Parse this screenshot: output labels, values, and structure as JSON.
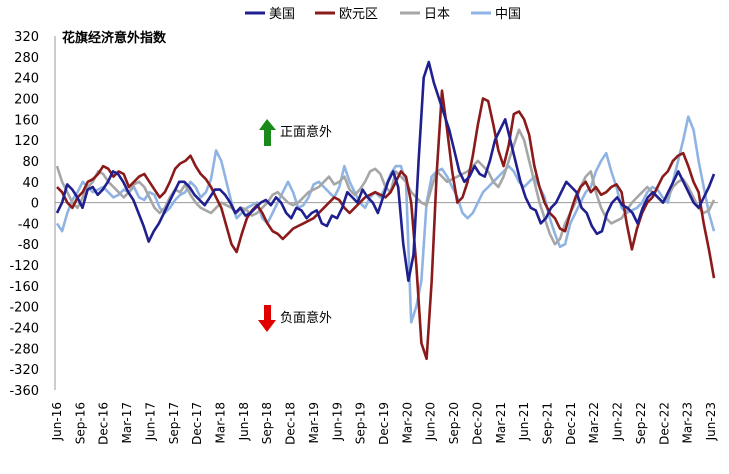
{
  "chart_data": {
    "type": "line",
    "title": "花旗经济意外指数",
    "ylim": [
      -360,
      320
    ],
    "yticks": [
      320,
      280,
      240,
      200,
      160,
      120,
      80,
      40,
      0,
      -40,
      -80,
      -120,
      -160,
      -200,
      -240,
      -280,
      -320,
      -360
    ],
    "x_tick_labels": [
      "Jun-16",
      "Sep-16",
      "Dec-16",
      "Mar-17",
      "Jun-17",
      "Sep-17",
      "Dec-17",
      "Mar-18",
      "Jun-18",
      "Sep-18",
      "Dec-18",
      "Mar-19",
      "Jun-19",
      "Sep-19",
      "Dec-19",
      "Mar-20",
      "Jun-20",
      "Sep-20",
      "Dec-20",
      "Mar-21",
      "Jun-21",
      "Sep-21",
      "Dec-21",
      "Mar-22",
      "Jun-22",
      "Sep-22",
      "Dec-22",
      "Mar-23",
      "Jun-23"
    ],
    "legend_position": "top",
    "annotations": [
      {
        "text": "正面意外",
        "arrow": "up",
        "color": "#1a8a1a",
        "y": 110
      },
      {
        "text": "负面意外",
        "arrow": "down",
        "color": "#e00000",
        "y": -175
      }
    ],
    "series": [
      {
        "name": "美国",
        "color": "#1f1f8f",
        "values": [
          -20,
          0,
          35,
          25,
          10,
          -10,
          25,
          30,
          15,
          25,
          40,
          60,
          55,
          40,
          20,
          5,
          -20,
          -45,
          -75,
          -55,
          -40,
          -20,
          0,
          20,
          40,
          40,
          30,
          15,
          5,
          -5,
          10,
          25,
          25,
          15,
          0,
          -20,
          -10,
          -25,
          -20,
          -10,
          0,
          5,
          -5,
          10,
          0,
          -20,
          -30,
          -10,
          -15,
          -30,
          -20,
          -15,
          -40,
          -45,
          -25,
          -30,
          -10,
          20,
          10,
          0,
          25,
          10,
          0,
          -20,
          10,
          40,
          60,
          30,
          -80,
          -150,
          -100,
          80,
          240,
          270,
          230,
          200,
          170,
          140,
          100,
          60,
          40,
          50,
          70,
          55,
          50,
          80,
          120,
          140,
          160,
          120,
          80,
          40,
          10,
          -10,
          -15,
          -40,
          -30,
          -10,
          0,
          20,
          40,
          30,
          20,
          -10,
          -20,
          -45,
          -60,
          -55,
          -20,
          0,
          10,
          -5,
          -10,
          -20,
          -40,
          -10,
          10,
          20,
          10,
          0,
          20,
          40,
          60,
          40,
          20,
          0,
          -10,
          10,
          30,
          55
        ]
      },
      {
        "name": "欧元区",
        "color": "#8b1a1a",
        "values": [
          30,
          20,
          0,
          -10,
          10,
          20,
          40,
          45,
          55,
          70,
          65,
          50,
          60,
          55,
          30,
          40,
          50,
          55,
          40,
          25,
          10,
          20,
          40,
          65,
          75,
          80,
          90,
          70,
          55,
          45,
          30,
          10,
          -10,
          -45,
          -80,
          -95,
          -60,
          -30,
          -15,
          -5,
          -20,
          -40,
          -55,
          -60,
          -70,
          -60,
          -50,
          -45,
          -40,
          -35,
          -30,
          -20,
          -10,
          0,
          10,
          5,
          -10,
          -20,
          -10,
          0,
          10,
          15,
          20,
          15,
          10,
          20,
          40,
          60,
          50,
          0,
          -120,
          -270,
          -300,
          -150,
          60,
          215,
          140,
          60,
          0,
          10,
          40,
          90,
          150,
          200,
          195,
          150,
          100,
          70,
          110,
          170,
          175,
          160,
          130,
          70,
          30,
          0,
          -20,
          -30,
          -50,
          -55,
          -20,
          10,
          30,
          40,
          20,
          30,
          15,
          20,
          30,
          35,
          20,
          -40,
          -90,
          -50,
          -20,
          0,
          10,
          30,
          50,
          60,
          80,
          90,
          95,
          70,
          40,
          20,
          -40,
          -90,
          -145
        ]
      },
      {
        "name": "日本",
        "color": "#a6a6a6",
        "values": [
          70,
          40,
          20,
          0,
          -10,
          10,
          30,
          40,
          60,
          55,
          40,
          30,
          20,
          10,
          20,
          35,
          40,
          30,
          10,
          -10,
          -20,
          -10,
          10,
          25,
          20,
          35,
          15,
          0,
          -10,
          -15,
          -20,
          -10,
          0,
          -5,
          -10,
          -20,
          -10,
          -15,
          -25,
          -20,
          -10,
          0,
          15,
          20,
          10,
          0,
          -5,
          0,
          10,
          20,
          25,
          30,
          40,
          50,
          35,
          40,
          50,
          25,
          15,
          25,
          40,
          60,
          65,
          55,
          30,
          20,
          60,
          50,
          40,
          20,
          10,
          0,
          -5,
          30,
          60,
          50,
          40,
          45,
          50,
          55,
          60,
          70,
          80,
          70,
          60,
          40,
          30,
          50,
          80,
          110,
          140,
          120,
          80,
          40,
          0,
          -30,
          -60,
          -80,
          -70,
          -40,
          -20,
          0,
          30,
          50,
          60,
          20,
          -10,
          -30,
          -40,
          -35,
          -30,
          -15,
          0,
          10,
          20,
          30,
          20,
          10,
          0,
          10,
          30,
          40,
          45,
          30,
          10,
          -10,
          -20,
          -15,
          5
        ]
      },
      {
        "name": "中国",
        "color": "#8fb4e3",
        "values": [
          -40,
          -55,
          -20,
          5,
          20,
          40,
          30,
          20,
          25,
          30,
          20,
          10,
          15,
          25,
          20,
          30,
          10,
          5,
          20,
          15,
          -10,
          -20,
          -10,
          5,
          15,
          20,
          40,
          30,
          10,
          20,
          45,
          100,
          80,
          40,
          0,
          -30,
          -20,
          -10,
          -5,
          0,
          -30,
          -40,
          -20,
          0,
          20,
          40,
          20,
          -10,
          -5,
          10,
          35,
          40,
          30,
          20,
          10,
          30,
          70,
          40,
          20,
          0,
          -10,
          10,
          20,
          10,
          30,
          55,
          70,
          70,
          40,
          -230,
          -200,
          -150,
          0,
          50,
          60,
          65,
          50,
          30,
          10,
          -20,
          -30,
          -20,
          0,
          20,
          30,
          40,
          50,
          60,
          70,
          60,
          40,
          30,
          40,
          50,
          30,
          10,
          -30,
          -60,
          -85,
          -80,
          -40,
          -20,
          0,
          20,
          30,
          60,
          80,
          95,
          60,
          30,
          -10,
          -20,
          -15,
          -10,
          0,
          20,
          30,
          25,
          10,
          0,
          40,
          80,
          120,
          165,
          140,
          80,
          30,
          -20,
          -55
        ]
      }
    ]
  }
}
